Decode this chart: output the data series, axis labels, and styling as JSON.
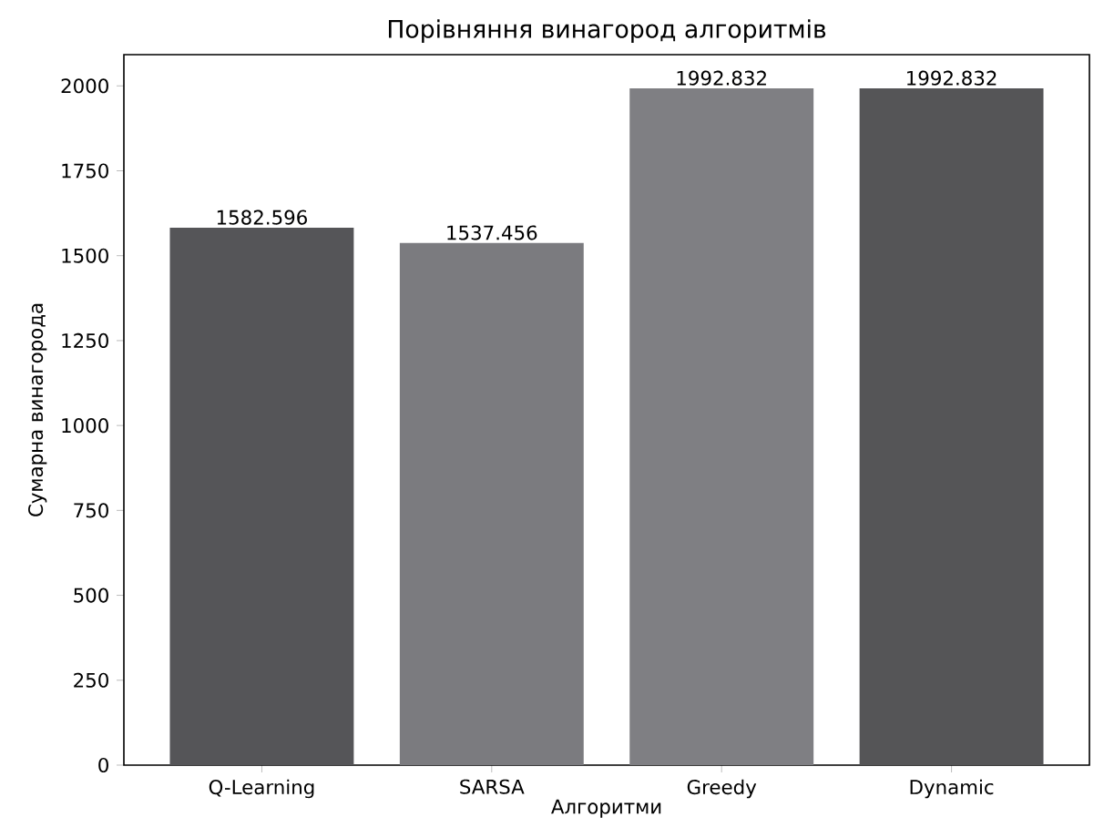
{
  "chart_data": {
    "type": "bar",
    "title": "Порівняння винагород алгоритмів",
    "xlabel": "Алгоритми",
    "ylabel": "Сумарна винагорода",
    "categories": [
      "Q-Learning",
      "SARSA",
      "Greedy",
      "Dynamic"
    ],
    "values": [
      1582.596,
      1537.456,
      1992.832,
      1992.832
    ],
    "colors": [
      "#555558",
      "#7b7b7f",
      "#7f7f83",
      "#555557"
    ],
    "ylim": [
      0,
      2092
    ],
    "yticks": [
      0,
      250,
      500,
      750,
      1000,
      1250,
      1500,
      1750,
      2000
    ],
    "data_labels": true
  }
}
